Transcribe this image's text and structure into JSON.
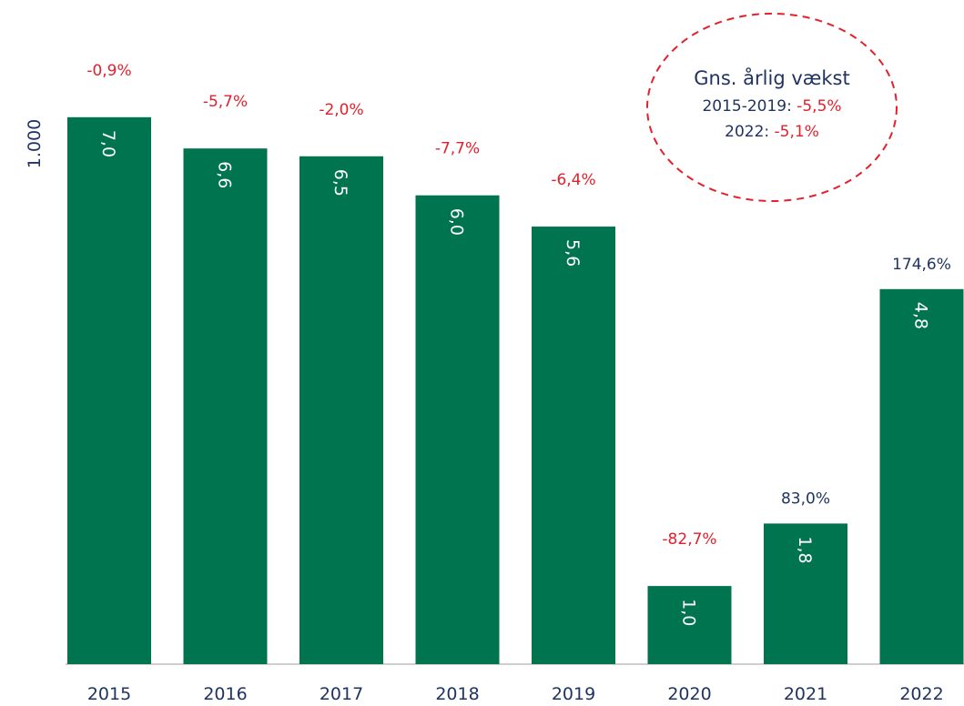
{
  "chart_data": {
    "type": "bar",
    "y_axis_label": "1.000",
    "categories": [
      "2015",
      "2016",
      "2017",
      "2018",
      "2019",
      "2020",
      "2021",
      "2022"
    ],
    "values": [
      7.0,
      6.6,
      6.5,
      6.0,
      5.6,
      1.0,
      1.8,
      4.8
    ],
    "value_labels": [
      "7,0",
      "6,6",
      "6,5",
      "6,0",
      "5,6",
      "1,0",
      "1,8",
      "4,8"
    ],
    "growth": [
      -0.9,
      -5.7,
      -2.0,
      -7.7,
      -6.4,
      -82.7,
      83.0,
      174.6
    ],
    "growth_labels": [
      "-0,9%",
      "-5,7%",
      "-2,0%",
      "-7,7%",
      "-6,4%",
      "-82,7%",
      "83,0%",
      "174,6%"
    ],
    "color": "#00734f",
    "negative_color": "#e3202b",
    "positive_color": "#1f3460",
    "ylim": [
      0,
      8.5
    ],
    "annotation": {
      "title": "Gns. årlig vækst",
      "lines": [
        {
          "label": "2015-2019:",
          "value": "-5,5%"
        },
        {
          "label": "2022:",
          "value": "-5,1%"
        }
      ]
    }
  }
}
